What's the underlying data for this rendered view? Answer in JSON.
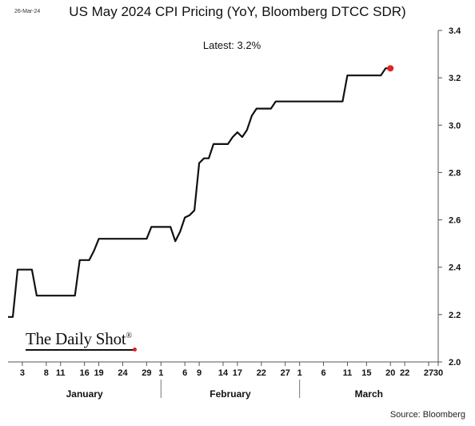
{
  "header": {
    "date_stamp": "26-Mar-24",
    "title": "US May 2024 CPI Pricing (YoY, Bloomberg DTCC SDR)",
    "latest_label": "Latest:  3.2%"
  },
  "footer": {
    "source": "Source: Bloomberg",
    "logo_text": "The Daily Shot",
    "logo_mark": "®"
  },
  "chart_data": {
    "type": "line",
    "title": "US May 2024 CPI Pricing (YoY, Bloomberg DTCC SDR)",
    "annotation": "Latest:  3.2%",
    "ylim": [
      2.0,
      3.4
    ],
    "yticks": [
      2.0,
      2.2,
      2.4,
      2.6,
      2.8,
      3.0,
      3.2,
      3.4
    ],
    "ytick_labels": [
      "2.0",
      "2.2",
      "2.4",
      "2.6",
      "2.8",
      "3.0",
      "3.2",
      "3.4"
    ],
    "y_axis_side": "right",
    "grid": false,
    "x_range_days": [
      0,
      90
    ],
    "xticks": [
      {
        "day": 3,
        "label": "3"
      },
      {
        "day": 8,
        "label": "8"
      },
      {
        "day": 11,
        "label": "11"
      },
      {
        "day": 16,
        "label": "16"
      },
      {
        "day": 19,
        "label": "19"
      },
      {
        "day": 24,
        "label": "24"
      },
      {
        "day": 29,
        "label": "29"
      },
      {
        "day": 32,
        "label": "1"
      },
      {
        "day": 37,
        "label": "6"
      },
      {
        "day": 40,
        "label": "9"
      },
      {
        "day": 45,
        "label": "14"
      },
      {
        "day": 48,
        "label": "17"
      },
      {
        "day": 53,
        "label": "22"
      },
      {
        "day": 58,
        "label": "27"
      },
      {
        "day": 61,
        "label": "1"
      },
      {
        "day": 66,
        "label": "6"
      },
      {
        "day": 71,
        "label": "11"
      },
      {
        "day": 75,
        "label": "15"
      },
      {
        "day": 80,
        "label": "20"
      },
      {
        "day": 83,
        "label": "22"
      },
      {
        "day": 88,
        "label": "27"
      },
      {
        "day": 90,
        "label": "30"
      }
    ],
    "months": [
      {
        "label": "January",
        "center_day": 16
      },
      {
        "label": "February",
        "center_day": 46.5
      },
      {
        "label": "March",
        "center_day": 75.5
      }
    ],
    "month_dividers": [
      32,
      61
    ],
    "series": [
      {
        "color": "#111111",
        "points": [
          [
            0,
            2.19
          ],
          [
            1,
            2.19
          ],
          [
            2,
            2.39
          ],
          [
            3,
            2.39
          ],
          [
            5,
            2.39
          ],
          [
            6,
            2.28
          ],
          [
            8,
            2.28
          ],
          [
            11,
            2.28
          ],
          [
            14,
            2.28
          ],
          [
            15,
            2.43
          ],
          [
            17,
            2.43
          ],
          [
            18,
            2.47
          ],
          [
            19,
            2.52
          ],
          [
            22,
            2.52
          ],
          [
            26,
            2.52
          ],
          [
            29,
            2.52
          ],
          [
            30,
            2.57
          ],
          [
            32,
            2.57
          ],
          [
            34,
            2.57
          ],
          [
            35,
            2.51
          ],
          [
            36,
            2.55
          ],
          [
            37,
            2.61
          ],
          [
            38,
            2.62
          ],
          [
            39,
            2.64
          ],
          [
            40,
            2.84
          ],
          [
            41,
            2.86
          ],
          [
            42,
            2.86
          ],
          [
            43,
            2.92
          ],
          [
            44,
            2.92
          ],
          [
            46,
            2.92
          ],
          [
            47,
            2.95
          ],
          [
            48,
            2.97
          ],
          [
            49,
            2.95
          ],
          [
            50,
            2.98
          ],
          [
            51,
            3.04
          ],
          [
            52,
            3.07
          ],
          [
            55,
            3.07
          ],
          [
            56,
            3.1
          ],
          [
            59,
            3.1
          ],
          [
            63,
            3.1
          ],
          [
            67,
            3.1
          ],
          [
            70,
            3.1
          ],
          [
            71,
            3.21
          ],
          [
            73,
            3.21
          ],
          [
            78,
            3.21
          ],
          [
            79,
            3.24
          ],
          [
            80,
            3.24
          ]
        ]
      }
    ],
    "latest_marker": {
      "day": 80,
      "value": 3.24,
      "color": "#e32222"
    }
  }
}
